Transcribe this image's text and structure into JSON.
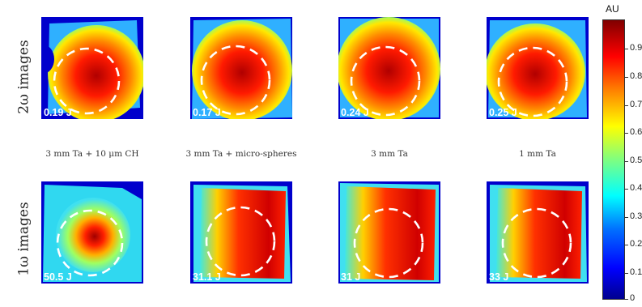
{
  "row_labels": {
    "top": "2ω images",
    "bottom": "1ω images"
  },
  "captions": [
    "3 mm Ta + 10 μm CH",
    "3 mm Ta + micro-spheres",
    "3 mm Ta",
    "1 mm Ta"
  ],
  "top_energies": [
    "0.19 J",
    "0.17 J",
    "0.24 J",
    "0.25 J"
  ],
  "bottom_energies": [
    "50.5 J",
    "31.1 J",
    "31 J",
    "33 J"
  ],
  "colorbar": {
    "title": "AU",
    "ticks": [
      "0.9",
      "0.8",
      "0.7",
      "0.6",
      "0.5",
      "0.4",
      "0.3",
      "0.2",
      "0.1",
      "0"
    ],
    "colormap": [
      "#00008f",
      "#0000ff",
      "#0070ff",
      "#00ffff",
      "#7fff80",
      "#ffff00",
      "#ff8000",
      "#ff0000",
      "#800000"
    ]
  }
}
